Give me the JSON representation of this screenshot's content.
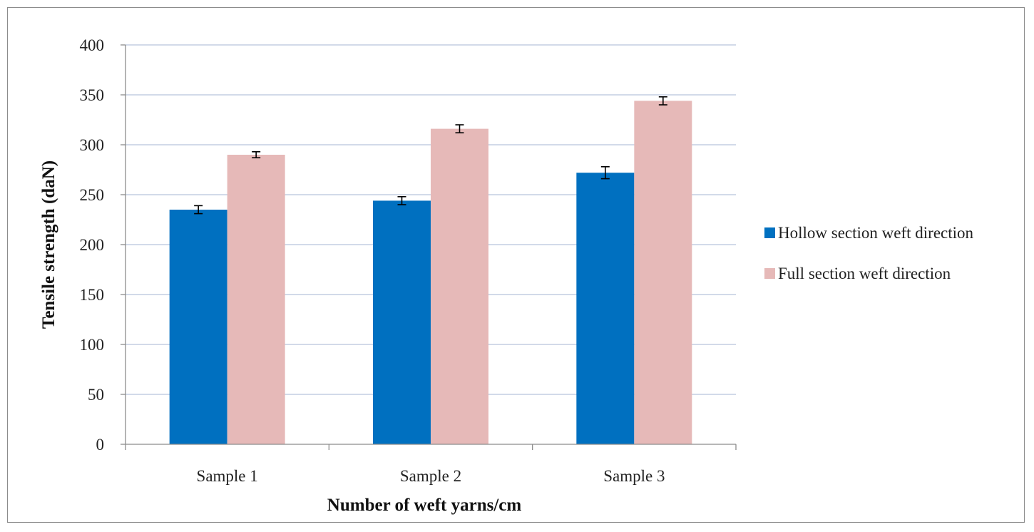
{
  "chart_data": {
    "type": "bar",
    "title": "",
    "xlabel": "Number of weft yarns/cm",
    "ylabel": "Tensile strength (daN)",
    "categories": [
      "Sample 1",
      "Sample 2",
      "Sample 3"
    ],
    "ylim": [
      0,
      400
    ],
    "yticks": [
      "0",
      "50",
      "100",
      "150",
      "200",
      "250",
      "300",
      "350",
      "400"
    ],
    "grid": true,
    "legend_position": "right",
    "series": [
      {
        "name": "Hollow section weft direction",
        "color": "#0070c0",
        "values": [
          235,
          244,
          272
        ],
        "errors": [
          4,
          4,
          6
        ]
      },
      {
        "name": "Full section weft direction",
        "color": "#e6b9b8",
        "values": [
          290,
          316,
          344
        ],
        "errors": [
          3,
          4,
          4
        ]
      }
    ]
  }
}
